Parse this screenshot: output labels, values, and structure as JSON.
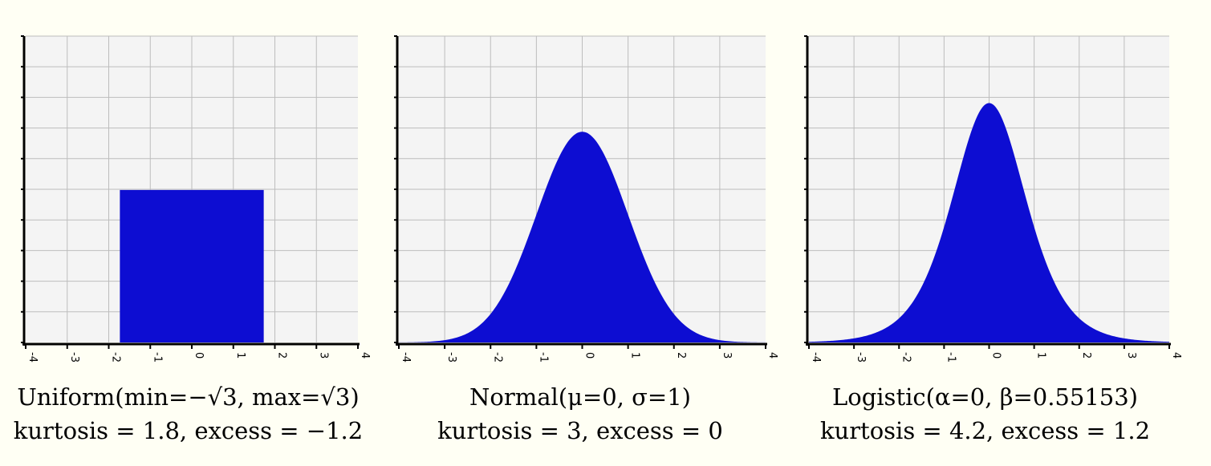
{
  "colors": {
    "fill": "#0d0dd2",
    "grid": "#bdbdbd",
    "plot_bg": "#f4f4f4",
    "axis": "#000000",
    "page_bg": "#fffff4"
  },
  "chart_data": [
    {
      "type": "area",
      "distribution": "uniform",
      "params": {
        "min": -1.7320508,
        "max": 1.7320508
      },
      "x_ticks": [
        "-4",
        "-3",
        "-2",
        "-1",
        "0",
        "1",
        "2",
        "3",
        "4"
      ],
      "xlim": [
        -4,
        4
      ],
      "ylim": [
        0,
        0.58
      ],
      "grid": true,
      "caption_line1": "Uniform(min=−√3, max=√3)",
      "caption_line2": "kurtosis = 1.8, excess = −1.2"
    },
    {
      "type": "area",
      "distribution": "normal",
      "params": {
        "mu": 0,
        "sigma": 1
      },
      "x_ticks": [
        "-4",
        "-3",
        "-2",
        "-1",
        "0",
        "1",
        "2",
        "3",
        "4"
      ],
      "xlim": [
        -4,
        4
      ],
      "ylim": [
        0,
        0.58
      ],
      "grid": true,
      "caption_line1": "Normal(μ=0, σ=1)",
      "caption_line2": "kurtosis = 3, excess = 0"
    },
    {
      "type": "area",
      "distribution": "logistic",
      "params": {
        "alpha": 0,
        "beta": 0.55153
      },
      "x_ticks": [
        "-4",
        "-3",
        "-2",
        "-1",
        "0",
        "1",
        "2",
        "3",
        "4"
      ],
      "xlim": [
        -4,
        4
      ],
      "ylim": [
        0,
        0.58
      ],
      "grid": true,
      "caption_line1": "Logistic(α=0, β=0.55153)",
      "caption_line2": "kurtosis = 4.2, excess = 1.2"
    }
  ]
}
